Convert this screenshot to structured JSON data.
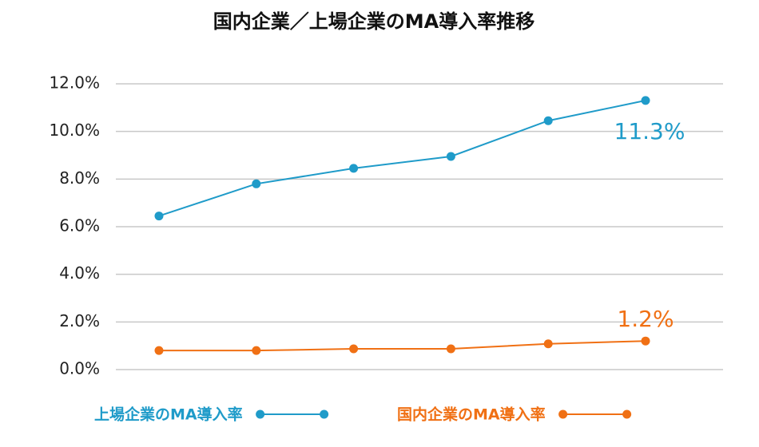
{
  "chart_data": {
    "type": "line",
    "title": "国内企業／上場企業のMA導入率推移",
    "categories": [
      null,
      null,
      null,
      null,
      null,
      null
    ],
    "series": [
      {
        "name": "上場企業のMA導入率",
        "color": "#1f9bc9",
        "values": [
          6.45,
          7.8,
          8.45,
          8.95,
          10.45,
          11.3
        ],
        "value_labels": [
          null,
          null,
          null,
          null,
          null,
          "11.3%"
        ]
      },
      {
        "name": "国内企業のMA導入率",
        "color": "#f07014",
        "values": [
          0.8,
          0.8,
          0.87,
          0.87,
          1.08,
          1.2
        ],
        "value_labels": [
          null,
          null,
          null,
          null,
          null,
          "1.2%"
        ]
      }
    ],
    "ylim": [
      0,
      12
    ],
    "yticks": [
      {
        "value": 0,
        "label": "0.0%"
      },
      {
        "value": 2,
        "label": "2.0%"
      },
      {
        "value": 4,
        "label": "4.0%"
      },
      {
        "value": 6,
        "label": "6.0%"
      },
      {
        "value": 8,
        "label": "8.0%"
      },
      {
        "value": 10,
        "label": "10.0%"
      },
      {
        "value": 12,
        "label": "12.0%"
      }
    ],
    "grid": true,
    "legend": "bottom"
  }
}
